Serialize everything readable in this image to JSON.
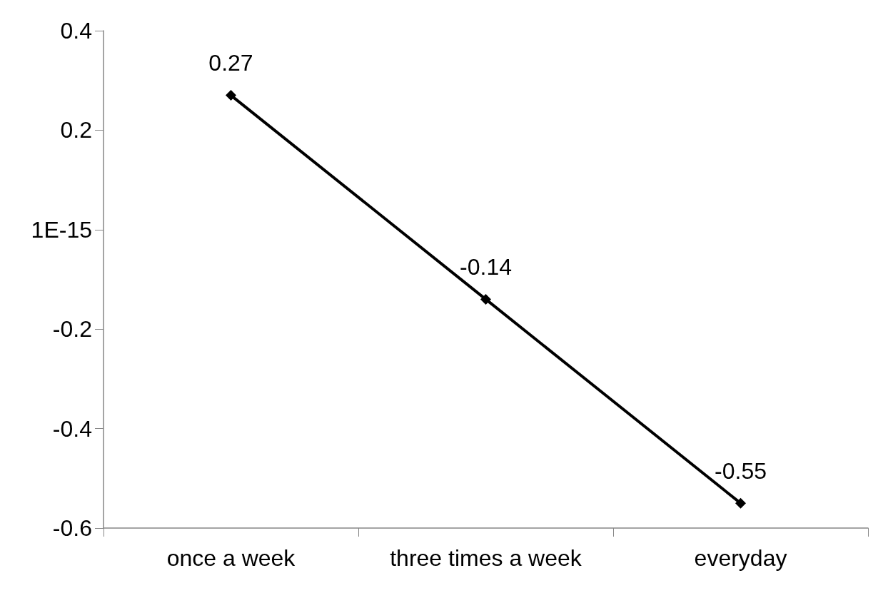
{
  "chart_data": {
    "type": "line",
    "categories": [
      "once a week",
      "three times a week",
      "everyday"
    ],
    "series": [
      {
        "color": "#000000",
        "values": [
          0.27,
          -0.14,
          -0.55
        ]
      }
    ],
    "ylim": [
      -0.6,
      0.4
    ],
    "yticks": [
      -0.6,
      -0.4,
      -0.2,
      {
        "value": 0,
        "label": "1E-15"
      },
      0.2,
      0.4
    ],
    "data_labels": true,
    "marker": "diamond",
    "line_style": "solid"
  }
}
